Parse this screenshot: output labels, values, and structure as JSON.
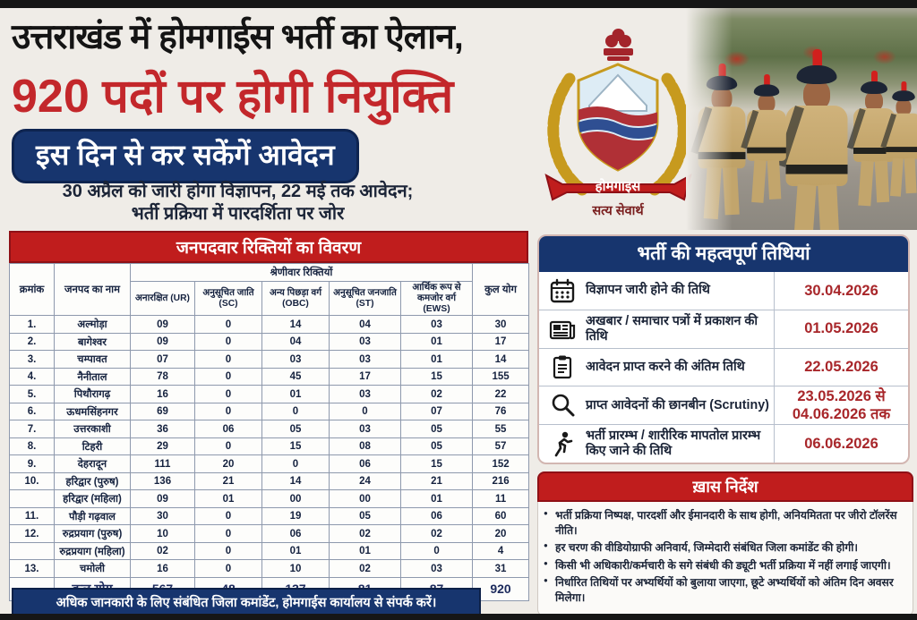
{
  "colors": {
    "accent_red": "#c01d1d",
    "navy_blue": "#17356e",
    "date_red": "#a8262a",
    "text_dark": "#1b2437",
    "wreath_gold": "#c79a1e"
  },
  "header": {
    "title_line1": "उत्तराखंड में होमगाईस भर्ती का ऐलान,",
    "title_line2": "920 पदों पर होगी नियुक्ति",
    "badge": "इस दिन से कर सकेंगें आवेदन",
    "subtitle_line1": "30 अप्रैल को जारी होगा विज्ञापन, 22 मई तक आवेदन;",
    "subtitle_line2": "भर्ती प्रक्रिया में पारदर्शिता पर जोर"
  },
  "logo": {
    "banner": "होमगाइस",
    "motto": "सत्य सेवार्थ"
  },
  "vacancy_table": {
    "title": "जनपदवार रिक्तियों का विवरण",
    "headers": {
      "serial": "क्रमांक",
      "district": "जनपद का नाम",
      "group": "श्रेणीवार रिक्तियों",
      "total": "कुल योग",
      "categories": [
        "अनारक्षित (UR)",
        "अनुसूचित जाति (SC)",
        "अन्य पिछड़ा वर्ग (OBC)",
        "अनुसूचित जनजाति (ST)",
        "आर्थिक रूप से कमजोर वर्ग (EWS)"
      ]
    },
    "rows": [
      {
        "sno": "1.",
        "district": "अल्मोड़ा",
        "ur": "09",
        "sc": "0",
        "obc": "14",
        "st": "04",
        "ews": "03",
        "total": "30"
      },
      {
        "sno": "2.",
        "district": "बागेश्वर",
        "ur": "09",
        "sc": "0",
        "obc": "04",
        "st": "03",
        "ews": "01",
        "total": "17"
      },
      {
        "sno": "3.",
        "district": "चम्पावत",
        "ur": "07",
        "sc": "0",
        "obc": "03",
        "st": "03",
        "ews": "01",
        "total": "14"
      },
      {
        "sno": "4.",
        "district": "नैनीताल",
        "ur": "78",
        "sc": "0",
        "obc": "45",
        "st": "17",
        "ews": "15",
        "total": "155"
      },
      {
        "sno": "5.",
        "district": "पिथौरागढ़",
        "ur": "16",
        "sc": "0",
        "obc": "01",
        "st": "03",
        "ews": "02",
        "total": "22"
      },
      {
        "sno": "6.",
        "district": "ऊधमसिंहनगर",
        "ur": "69",
        "sc": "0",
        "obc": "0",
        "st": "0",
        "ews": "07",
        "total": "76"
      },
      {
        "sno": "7.",
        "district": "उत्तरकाशी",
        "ur": "36",
        "sc": "06",
        "obc": "05",
        "st": "03",
        "ews": "05",
        "total": "55"
      },
      {
        "sno": "8.",
        "district": "टिहरी",
        "ur": "29",
        "sc": "0",
        "obc": "15",
        "st": "08",
        "ews": "05",
        "total": "57"
      },
      {
        "sno": "9.",
        "district": "देहरादून",
        "ur": "111",
        "sc": "20",
        "obc": "0",
        "st": "06",
        "ews": "15",
        "total": "152"
      },
      {
        "sno": "10.",
        "district": "हरिद्वार (पुरुष)",
        "ur": "136",
        "sc": "21",
        "obc": "14",
        "st": "24",
        "ews": "21",
        "total": "216"
      },
      {
        "sno": "",
        "district": "हरिद्वार (महिला)",
        "ur": "09",
        "sc": "01",
        "obc": "00",
        "st": "00",
        "ews": "01",
        "total": "11"
      },
      {
        "sno": "11.",
        "district": "पौड़ी गढ़वाल",
        "ur": "30",
        "sc": "0",
        "obc": "19",
        "st": "05",
        "ews": "06",
        "total": "60"
      },
      {
        "sno": "12.",
        "district": "रुद्रप्रयाग (पुरुष)",
        "ur": "10",
        "sc": "0",
        "obc": "06",
        "st": "02",
        "ews": "02",
        "total": "20"
      },
      {
        "sno": "",
        "district": "रुद्रप्रयाग (महिला)",
        "ur": "02",
        "sc": "0",
        "obc": "01",
        "st": "01",
        "ews": "0",
        "total": "4"
      },
      {
        "sno": "13.",
        "district": "चमोली",
        "ur": "16",
        "sc": "0",
        "obc": "10",
        "st": "02",
        "ews": "03",
        "total": "31"
      }
    ],
    "total_row": {
      "label": "कुल योग",
      "ur": "567",
      "sc": "48",
      "obc": "137",
      "st": "81",
      "ews": "87",
      "total": "920"
    }
  },
  "contact_bar": "अधिक जानकारी के लिए संबंधित जिला कमांडेंट, होमगाईस कार्यालय से संपर्क करें।",
  "important_dates": {
    "title": "भर्ती की महत्वपूर्ण तिथियां",
    "rows": [
      {
        "icon": "calendar-icon",
        "label": "विज्ञापन जारी होने की तिथि",
        "date": "30.04.2026"
      },
      {
        "icon": "newspaper-icon",
        "label": "अखबार / समाचार पत्रों में प्रकाशन की तिथि",
        "date": "01.05.2026"
      },
      {
        "icon": "clipboard-icon",
        "label": "आवेदन प्राप्त करने की अंतिम तिथि",
        "date": "22.05.2026"
      },
      {
        "icon": "magnifier-icon",
        "label": "प्राप्त आवेदनों की छानबीन (Scrutiny)",
        "date": "23.05.2026 से 04.06.2026 तक"
      },
      {
        "icon": "runner-icon",
        "label": "भर्ती प्रारम्भ / शारीरिक मापतोल प्रारम्भ किए जाने की तिथि",
        "date": "06.06.2026"
      }
    ]
  },
  "notes": {
    "title": "ख़ास निर्देश",
    "items": [
      "भर्ती प्रक्रिया निष्पक्ष, पारदर्शी और ईमानदारी के साथ होगी, अनियमितता पर जीरो टॉलरेंस नीति।",
      "हर चरण की वीडियोग्राफी अनिवार्य, जिम्मेदारी संबंधित जिला कमांडेंट की होगी।",
      "किसी भी अधिकारी/कर्मचारी के सगे संबंधी की ड्यूटी भर्ती प्रक्रिया में नहीं लगाई जाएगी।",
      "निर्धारित तिथियों पर अभ्यर्थियों को बुलाया जाएगा, छूटे अभ्यर्थियों को अंतिम दिन अवसर मिलेगा।"
    ]
  }
}
